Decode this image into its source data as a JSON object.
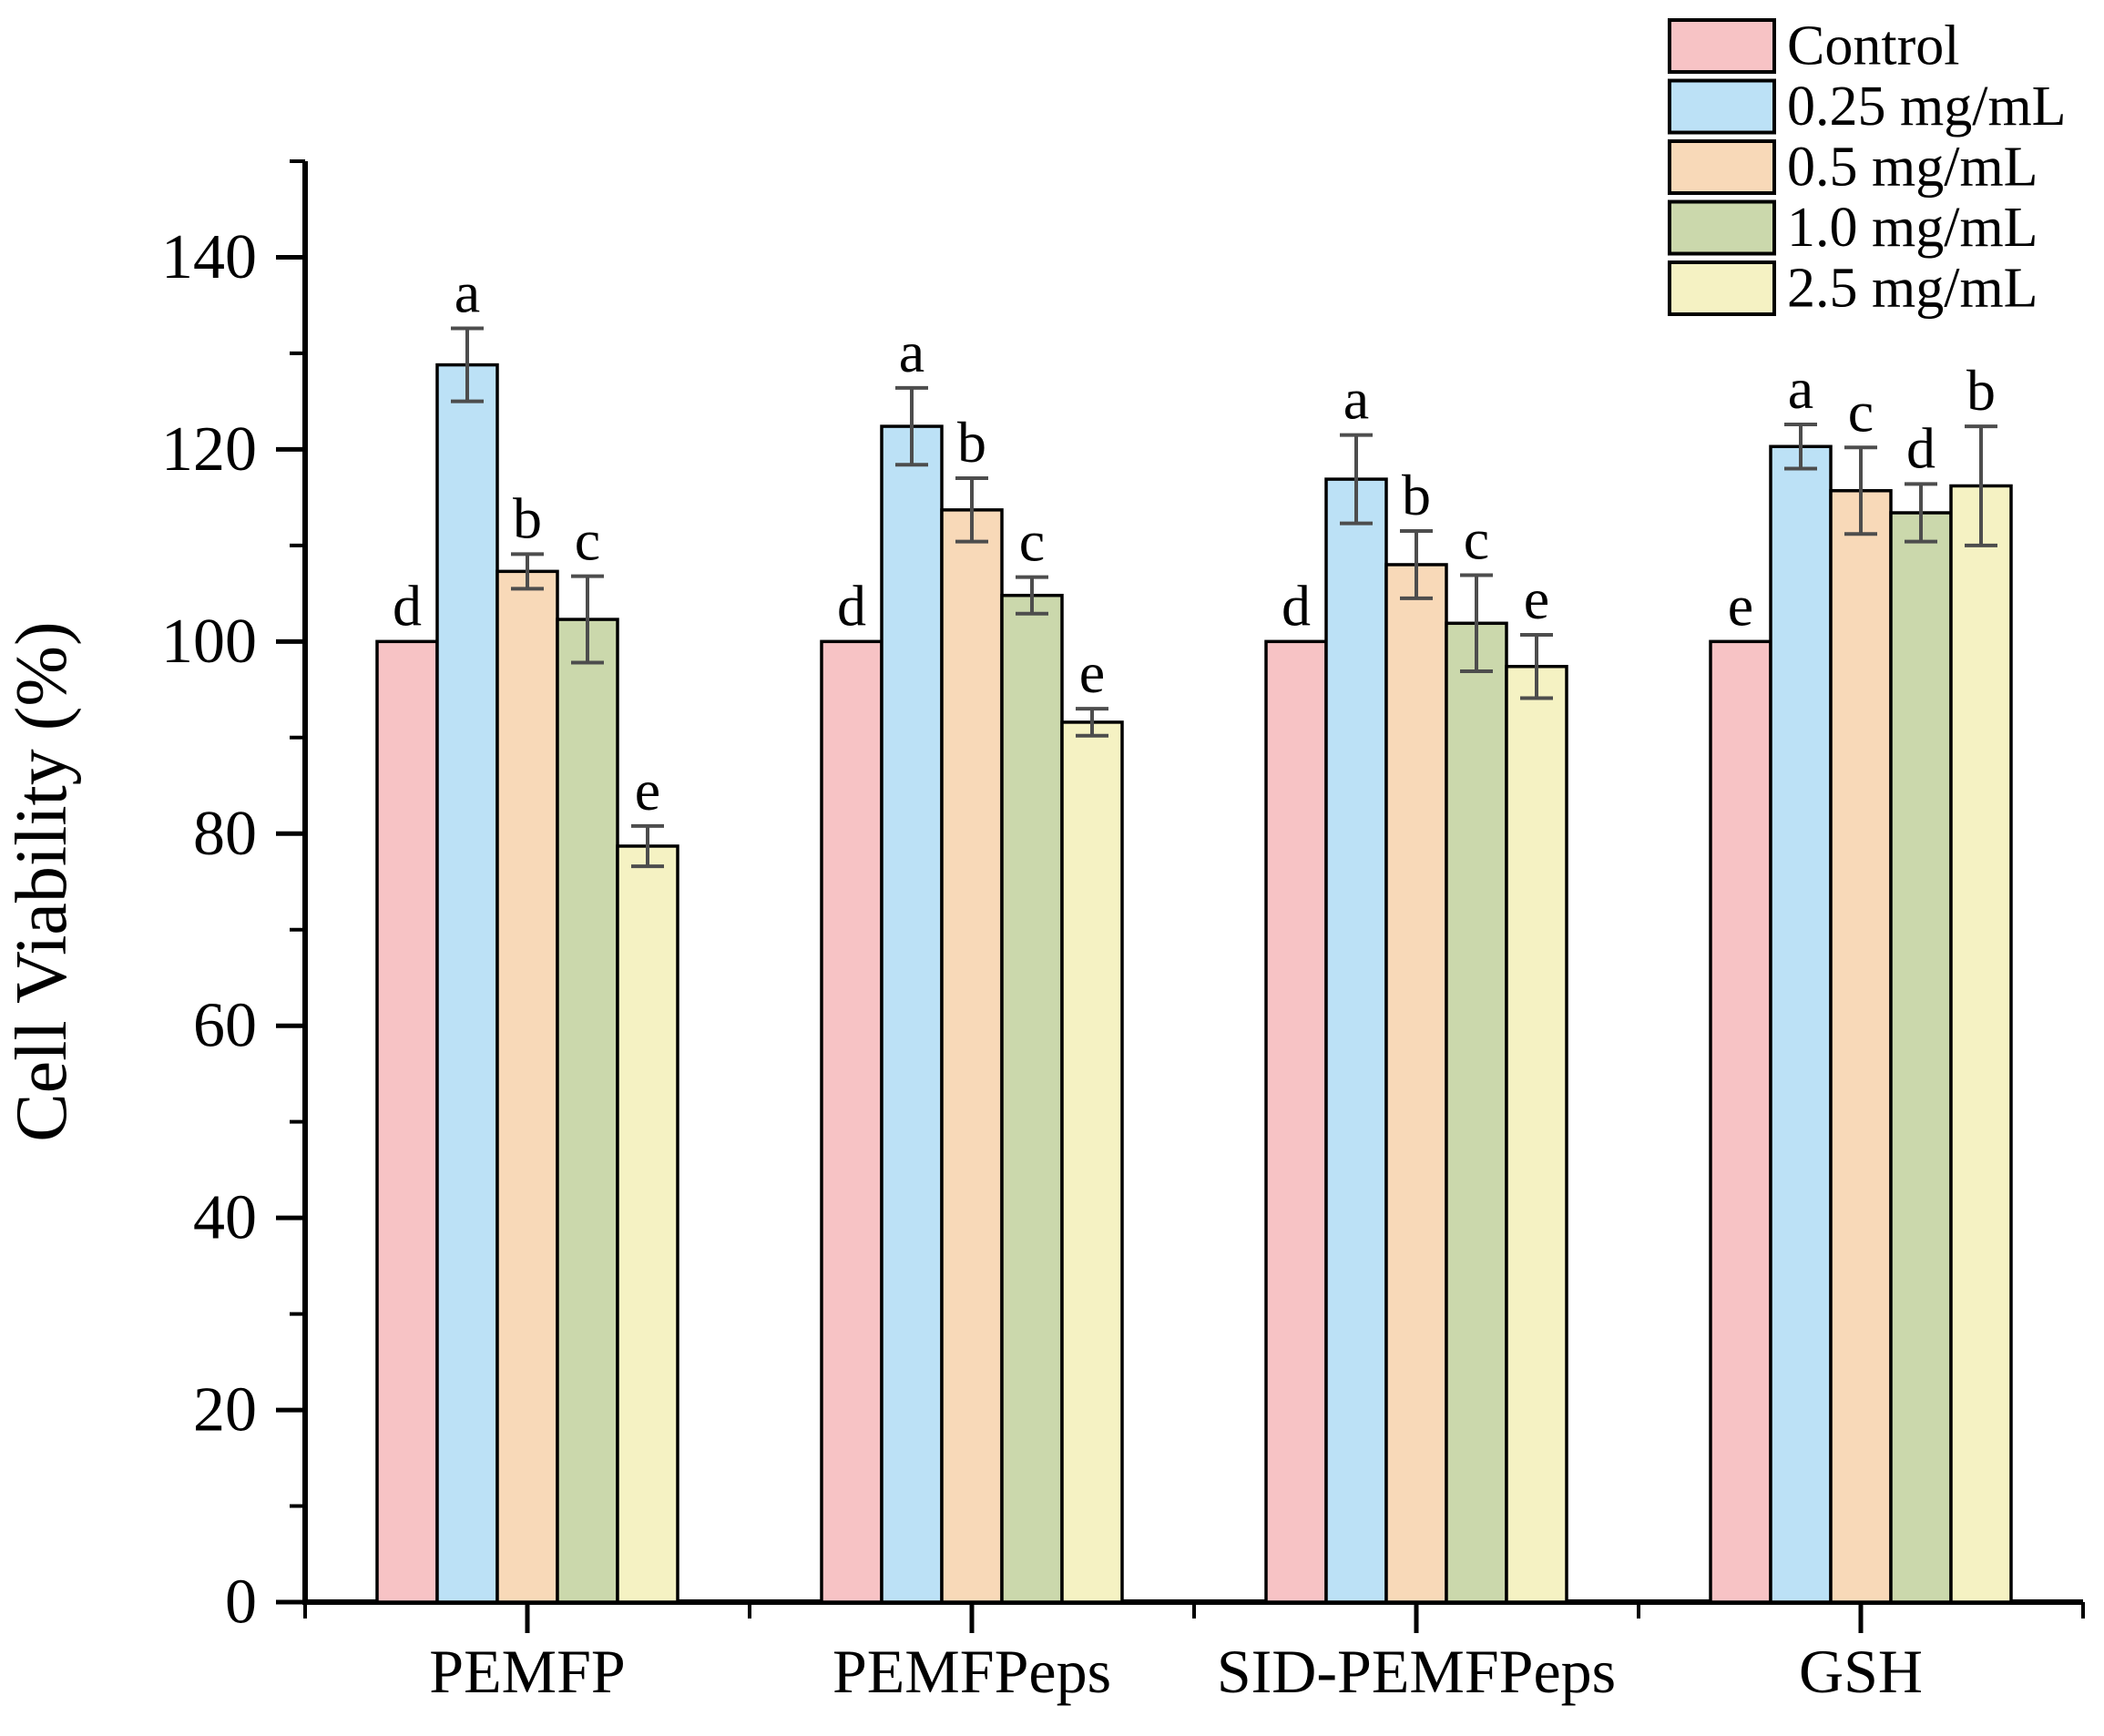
{
  "figure": {
    "background": "#ffffff",
    "axis_color": "#000000",
    "error_bar_color": "#4d4d4d"
  },
  "chart_data": {
    "type": "bar",
    "title": "",
    "xlabel": "",
    "ylabel": "Cell Viability (%)",
    "ylim": [
      0,
      150
    ],
    "yticks": [
      0,
      20,
      40,
      60,
      80,
      100,
      120,
      140
    ],
    "minor_tick_step": 10,
    "grid": false,
    "legend_position": "top-right",
    "categories": [
      "PEMFP",
      "PEMFPeps",
      "SID-PEMFPeps",
      "GSH"
    ],
    "series": [
      {
        "name": "Control",
        "color": "#f7c3c5",
        "values": [
          100.0,
          100.0,
          100.0,
          100.0
        ],
        "errors": [
          0,
          0,
          0,
          0
        ],
        "letters": [
          "d",
          "d",
          "d",
          "e"
        ]
      },
      {
        "name": "0.25 mg/mL",
        "color": "#bce1f6",
        "values": [
          128.8,
          122.4,
          116.9,
          120.3
        ],
        "errors": [
          3.8,
          4.0,
          4.6,
          2.3
        ],
        "letters": [
          "a",
          "a",
          "a",
          "a"
        ]
      },
      {
        "name": "0.5 mg/mL",
        "color": "#f8d9b8",
        "values": [
          107.3,
          113.7,
          108.0,
          115.7
        ],
        "errors": [
          1.8,
          3.3,
          3.5,
          4.5
        ],
        "letters": [
          "b",
          "b",
          "b",
          "c"
        ]
      },
      {
        "name": "1.0 mg/mL",
        "color": "#cbd8ac",
        "values": [
          102.3,
          104.8,
          101.9,
          113.4
        ],
        "errors": [
          4.5,
          1.9,
          5.0,
          3.0
        ],
        "letters": [
          "c",
          "c",
          "c",
          "d"
        ]
      },
      {
        "name": "2.5 mg/mL",
        "color": "#f5f2c3",
        "values": [
          78.7,
          91.6,
          97.4,
          116.2
        ],
        "errors": [
          2.1,
          1.4,
          3.3,
          6.2
        ],
        "letters": [
          "e",
          "e",
          "e",
          "b"
        ]
      }
    ]
  }
}
